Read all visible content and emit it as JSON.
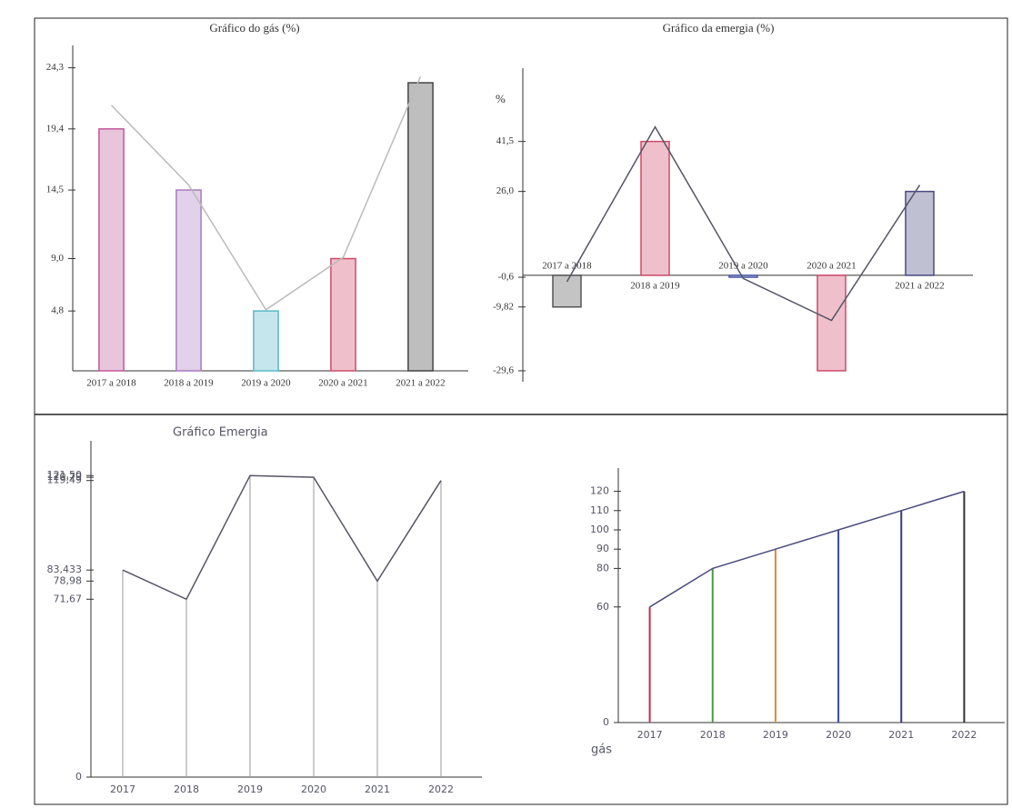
{
  "chart_data": [
    {
      "type": "bar",
      "title": "Gráfico do gás (%)",
      "categories": [
        "2017 a 2018",
        "2018 a 2019",
        "2019 a 2020",
        "2020 a 2021",
        "2021 a 2022"
      ],
      "values": [
        19.4,
        14.5,
        4.8,
        9.0,
        23.1
      ],
      "colors": [
        "#c0589a",
        "#a87ac0",
        "#5ab8c8",
        "#d04a6a",
        "#444444"
      ],
      "line": {
        "values": [
          21.3,
          14.9,
          4.9,
          9.1,
          23.6
        ],
        "color": "#bbbbbb"
      },
      "ylim": [
        0,
        25
      ],
      "yticks": [
        {
          "value": 4.8,
          "label": "4,8"
        },
        {
          "value": 9.0,
          "label": "9,0"
        },
        {
          "value": 14.5,
          "label": "14,5"
        },
        {
          "value": 19.4,
          "label": "19,4"
        },
        {
          "value": 24.3,
          "label": "24,3"
        }
      ],
      "grid": false
    },
    {
      "type": "bar",
      "title": "Gráfico da emergia (%)",
      "y_label": "%",
      "categories": [
        "2017 a 2018",
        "2018 a 2019",
        "2019 a 2020",
        "2020 a 2021",
        "2021 a 2022"
      ],
      "values": [
        -9.82,
        41.5,
        -0.6,
        -29.6,
        26.0
      ],
      "colors": [
        "#555555",
        "#d04a6a",
        "#4a5aa8",
        "#d04a6a",
        "#4a4a80"
      ],
      "line": {
        "values": [
          -2,
          46,
          -1,
          -14,
          28
        ],
        "color": "#556"
      },
      "ylim": [
        -33,
        60
      ],
      "yticks": [
        {
          "value": -29.6,
          "label": "-29,6"
        },
        {
          "value": -9.82,
          "label": "-9,82"
        },
        {
          "value": -0.6,
          "label": "-0,6"
        },
        {
          "value": 26.0,
          "label": "26,0"
        },
        {
          "value": 41.5,
          "label": "41,5"
        }
      ],
      "grid": false
    },
    {
      "type": "line",
      "title": "Gráfico Emergia",
      "categories": [
        "2017",
        "2018",
        "2019",
        "2020",
        "2021",
        "2022"
      ],
      "values": [
        83.433,
        71.67,
        121.5,
        120.79,
        78.98,
        119.49
      ],
      "color": "#555566",
      "stems": true,
      "ylim": [
        0,
        130
      ],
      "yticks": [
        0,
        {
          "value": 71.67,
          "label": "71,67"
        },
        {
          "value": 78.98,
          "label": "78,98"
        },
        {
          "value": 83.433,
          "label": "83,433"
        },
        {
          "value": 119.49,
          "label": "119,49"
        },
        {
          "value": 120.79,
          "label": "120,79"
        },
        {
          "value": 121.5,
          "label": "121,50"
        }
      ],
      "grid": false
    },
    {
      "type": "line",
      "y_label": "gás",
      "categories": [
        "2017",
        "2018",
        "2019",
        "2020",
        "2021",
        "2022"
      ],
      "values": [
        60,
        80,
        90,
        100,
        110,
        120
      ],
      "color": "#4a4a80",
      "stems": true,
      "stem_colors": [
        "#c03050",
        "#4a9a40",
        "#e08a30",
        "#3a4aa0",
        "#3a3a80",
        "#333333"
      ],
      "ylim": [
        0,
        125
      ],
      "yticks": [
        0,
        60,
        80,
        90,
        100,
        110,
        120
      ],
      "grid": false
    }
  ]
}
